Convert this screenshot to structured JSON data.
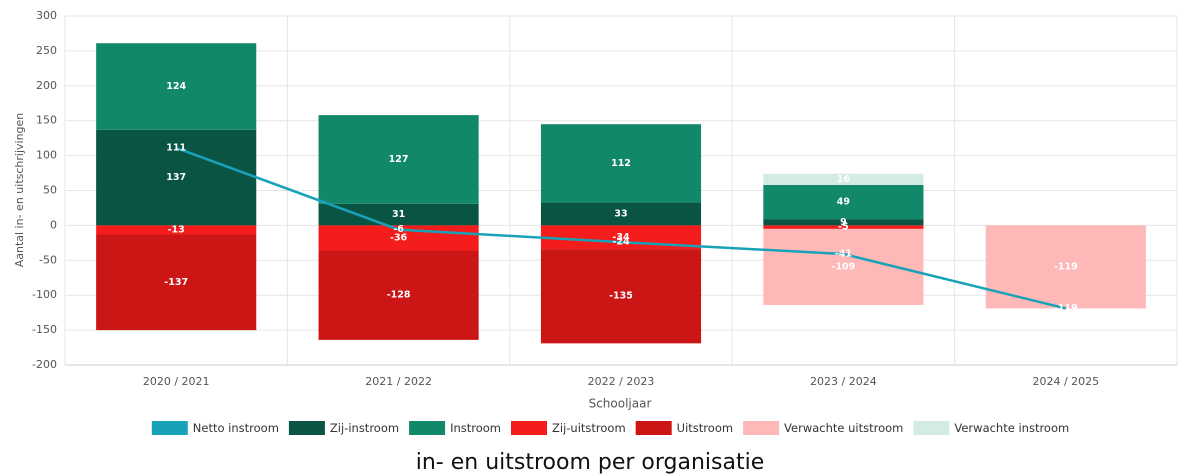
{
  "chart_data": {
    "type": "bar",
    "stacked": true,
    "title": "in- en uitstroom per organisatie",
    "x_label": "Schooljaar",
    "y_label": "Aantal in- en uitschrijvingen",
    "categories": [
      "2020 / 2021",
      "2021 / 2022",
      "2022 / 2023",
      "2023 / 2024",
      "2024 / 2025"
    ],
    "ylim": [
      -200,
      300
    ],
    "yticks": [
      -200,
      -150,
      -100,
      -50,
      0,
      50,
      100,
      150,
      200,
      250,
      300
    ],
    "grid": true,
    "legend": "bottom",
    "series": [
      {
        "name": "Netto instroom",
        "type": "line",
        "color": "#17a2b8",
        "values": [
          111,
          -6,
          -24,
          -41,
          -119
        ]
      },
      {
        "name": "Zij-instroom",
        "color": "#0a5444",
        "values": [
          137,
          31,
          33,
          9,
          null
        ]
      },
      {
        "name": "Instroom",
        "color": "#12886a",
        "values": [
          124,
          127,
          112,
          49,
          null
        ]
      },
      {
        "name": "Zij-uitstroom",
        "color": "#f51c1c",
        "values": [
          -13,
          -36,
          -34,
          -5,
          null
        ]
      },
      {
        "name": "Uitstroom",
        "color": "#cc1515",
        "values": [
          -137,
          -128,
          -135,
          null,
          null
        ]
      },
      {
        "name": "Verwachte uitstroom",
        "color": "#ffb8b8",
        "values": [
          null,
          null,
          null,
          -109,
          -119
        ]
      },
      {
        "name": "Verwachte instroom",
        "color": "#d3ebe2",
        "values": [
          null,
          null,
          null,
          16,
          null
        ]
      }
    ]
  }
}
